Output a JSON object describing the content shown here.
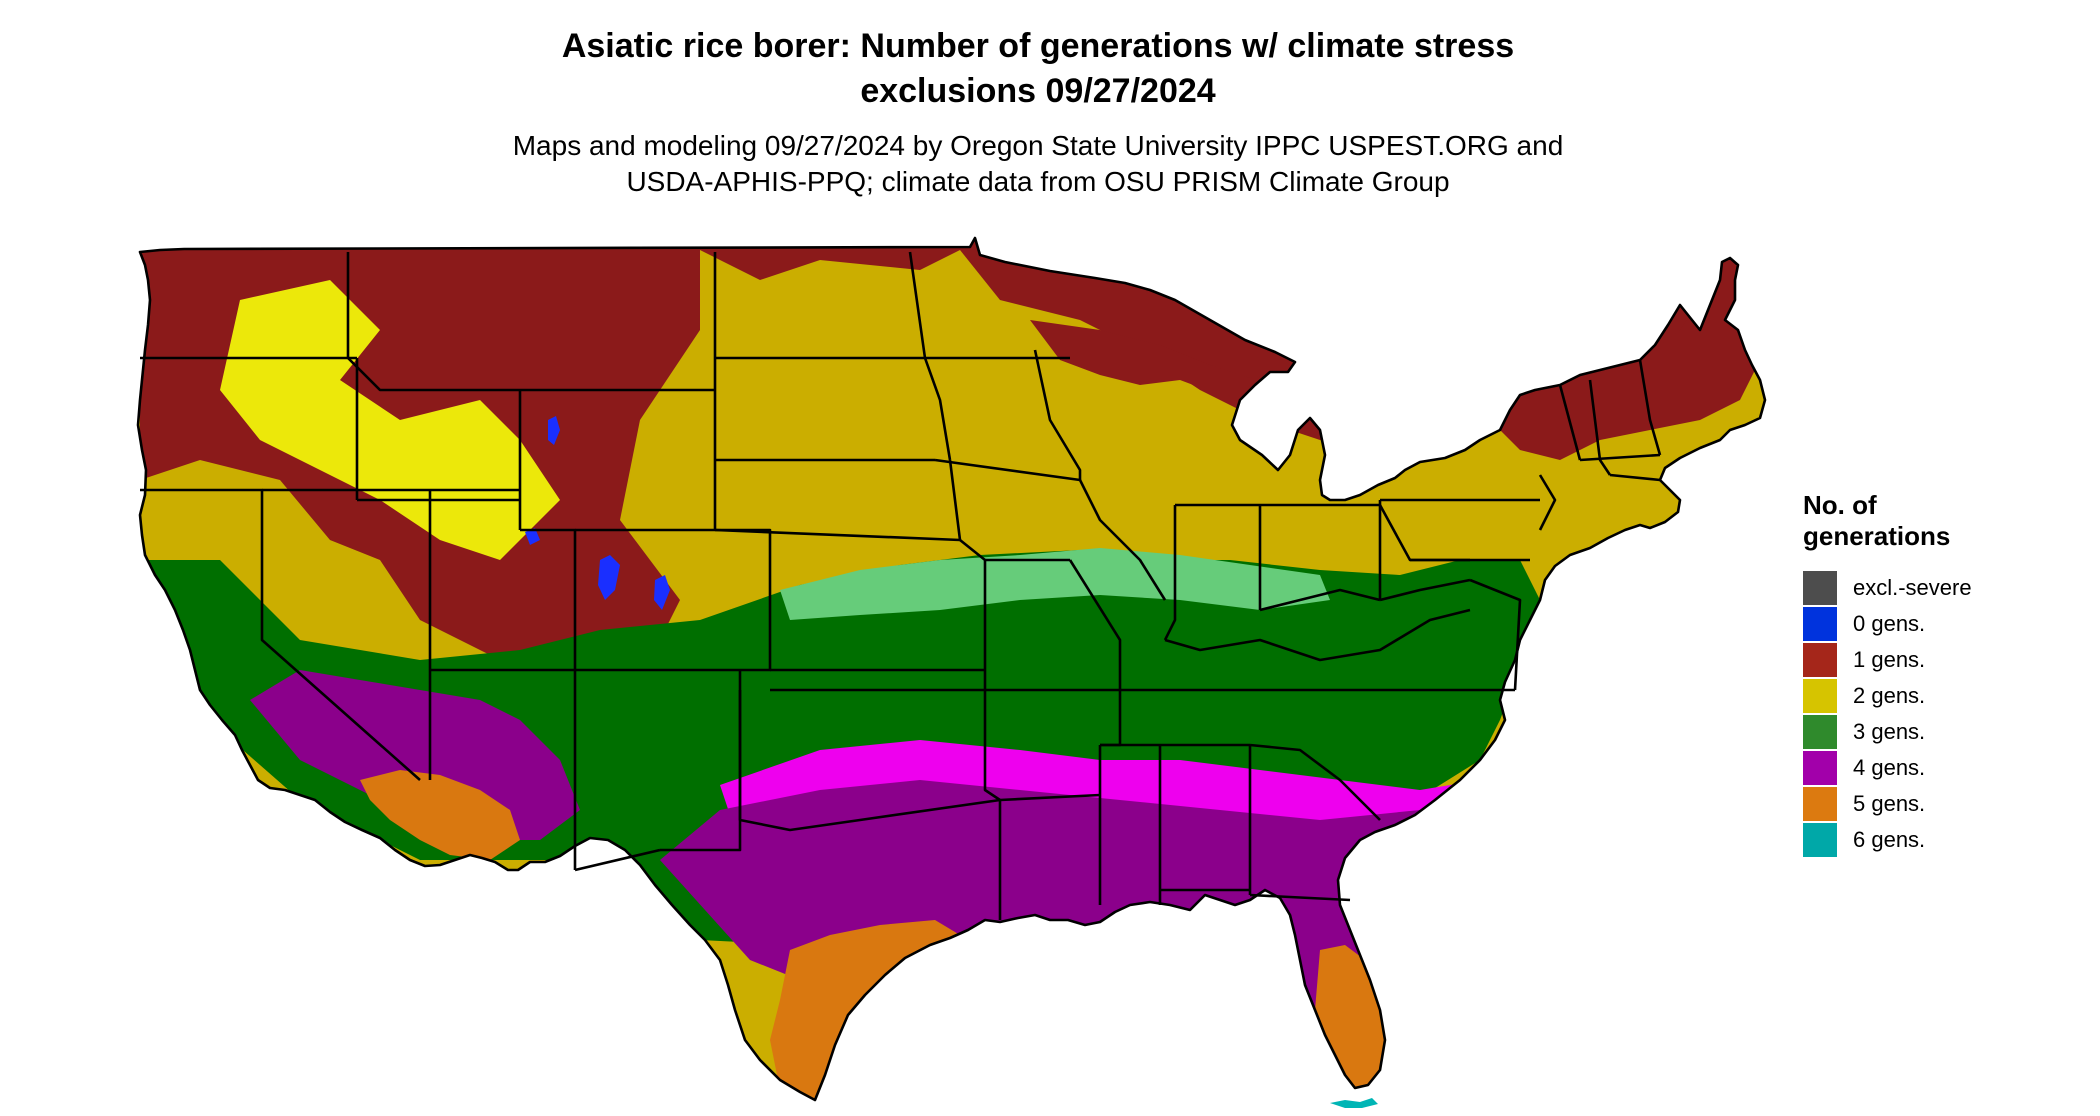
{
  "title_line1": "Asiatic rice borer: Number of generations w/ climate stress",
  "title_line2": "exclusions 09/27/2024",
  "subtitle_line1": "Maps and modeling 09/27/2024 by Oregon State University IPPC USPEST.ORG and",
  "subtitle_line2": "USDA-APHIS-PPQ; climate data from OSU PRISM Climate Group",
  "legend": {
    "title_line1": "No. of",
    "title_line2": "generations",
    "items": [
      {
        "label": "excl.-severe",
        "color": "#4d4d4d"
      },
      {
        "label": "0 gens.",
        "color": "#0033dd"
      },
      {
        "label": "1 gens.",
        "color": "#a5261a"
      },
      {
        "label": "2 gens.",
        "color": "#d6c400"
      },
      {
        "label": "3 gens.",
        "color": "#2f8a2c"
      },
      {
        "label": "4 gens.",
        "color": "#a200aa"
      },
      {
        "label": "5 gens.",
        "color": "#dc7a10"
      },
      {
        "label": "6 gens.",
        "color": "#00a8a8"
      }
    ]
  },
  "map_colors": {
    "gen1": "#8b1a1a",
    "gen2": "#cbae00",
    "gen2_light": "#ece80a",
    "gen3": "#006f00",
    "gen3_light": "#66cc7a",
    "gen4": "#8b008b",
    "gen4_light": "#ee00ee",
    "gen5": "#d97810",
    "gen6": "#00b5b5",
    "gen0": "#1a2fff",
    "border": "#000000"
  }
}
